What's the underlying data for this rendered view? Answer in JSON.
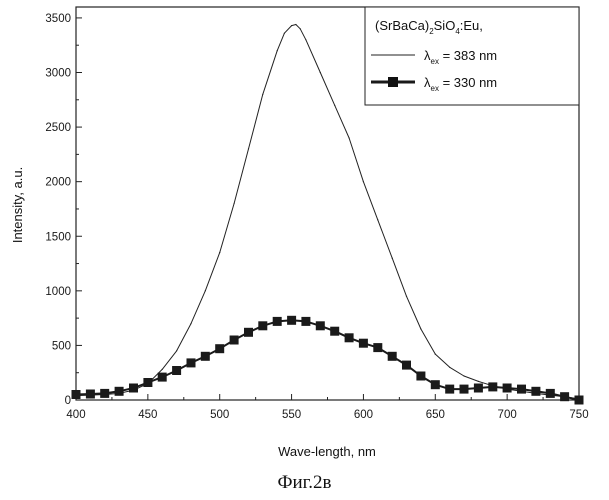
{
  "chart_data": {
    "type": "line",
    "title": "",
    "xlabel": "Wave-length, nm",
    "ylabel": "Intensity, a.u.",
    "xlim": [
      400,
      750
    ],
    "ylim": [
      0,
      3600
    ],
    "x_ticks": [
      400,
      450,
      500,
      550,
      600,
      650,
      700,
      750
    ],
    "y_ticks": [
      0,
      500,
      1000,
      1500,
      2000,
      2500,
      3000,
      3500
    ],
    "grid": false,
    "legend_position": "top-right",
    "legend": {
      "header": {
        "base": "(SrBaCa)",
        "sub1": "2",
        "mid": "SiO",
        "sub2": "4",
        "tail": ":Eu,"
      },
      "entries": [
        {
          "symbol": "λ",
          "sub": "ex",
          "text": " = 383 nm"
        },
        {
          "symbol": "λ",
          "sub": "ex",
          "text": " = 330 nm"
        }
      ]
    },
    "series": [
      {
        "style": "thin",
        "color": "#222222",
        "x": [
          400,
          410,
          420,
          430,
          440,
          450,
          460,
          470,
          480,
          490,
          500,
          510,
          520,
          530,
          540,
          545,
          550,
          553,
          556,
          560,
          570,
          580,
          590,
          600,
          610,
          620,
          630,
          640,
          650,
          660,
          670,
          680,
          690,
          700,
          710,
          720,
          730,
          740,
          750
        ],
        "values": [
          40,
          45,
          50,
          60,
          90,
          150,
          280,
          450,
          700,
          1000,
          1350,
          1800,
          2300,
          2800,
          3200,
          3360,
          3430,
          3440,
          3400,
          3300,
          3000,
          2700,
          2400,
          2000,
          1650,
          1300,
          950,
          650,
          420,
          300,
          220,
          170,
          130,
          100,
          80,
          60,
          45,
          30,
          10
        ]
      },
      {
        "style": "thick",
        "color": "#1a1a1a",
        "x": [
          400,
          410,
          420,
          430,
          440,
          450,
          460,
          470,
          480,
          490,
          500,
          510,
          520,
          530,
          540,
          550,
          560,
          570,
          580,
          590,
          600,
          610,
          620,
          630,
          640,
          650,
          660,
          670,
          680,
          690,
          700,
          710,
          720,
          730,
          740,
          750
        ],
        "values": [
          50,
          55,
          60,
          80,
          110,
          160,
          210,
          270,
          340,
          400,
          470,
          550,
          620,
          680,
          720,
          730,
          720,
          680,
          630,
          570,
          520,
          480,
          400,
          320,
          220,
          140,
          100,
          100,
          110,
          120,
          110,
          100,
          80,
          60,
          30,
          0
        ]
      }
    ]
  },
  "caption": "Фиг.2в"
}
